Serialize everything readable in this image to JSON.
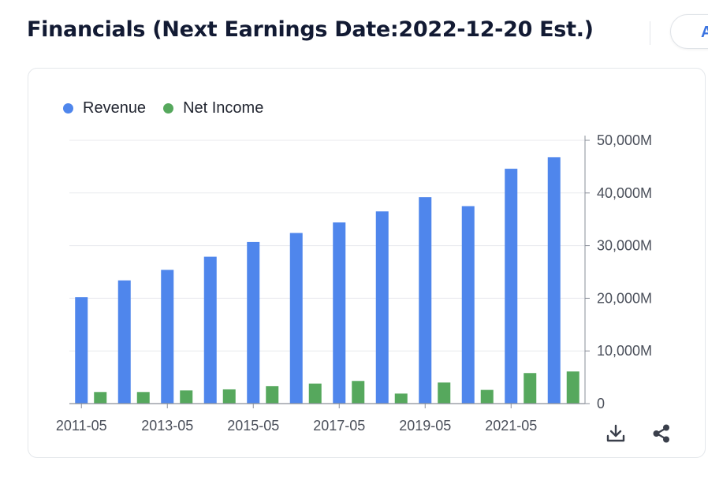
{
  "header": {
    "title": "Financials (Next Earnings Date:2022-12-20 Est.)",
    "right_button_label": "A"
  },
  "toolbar": {
    "download_icon": "download-icon",
    "share_icon": "share-icon"
  },
  "colors": {
    "revenue": "#4f86ec",
    "net_income": "#56a85d",
    "grid": "#e8eaee",
    "axis": "#8a8f99"
  },
  "chart_data": {
    "type": "bar",
    "categories": [
      "2011-05",
      "2012-05",
      "2013-05",
      "2014-05",
      "2015-05",
      "2016-05",
      "2017-05",
      "2018-05",
      "2019-05",
      "2020-05",
      "2021-05",
      "2022-05"
    ],
    "x_tick_labels": [
      "2011-05",
      "2013-05",
      "2015-05",
      "2017-05",
      "2019-05",
      "2021-05"
    ],
    "series": [
      {
        "name": "Revenue",
        "values": [
          20200,
          23400,
          25400,
          27900,
          30700,
          32400,
          34400,
          36500,
          39200,
          37500,
          44600,
          46800
        ]
      },
      {
        "name": "Net Income",
        "values": [
          2200,
          2200,
          2500,
          2700,
          3300,
          3800,
          4300,
          1900,
          4000,
          2600,
          5800,
          6100
        ]
      }
    ],
    "ylim": [
      0,
      50000
    ],
    "y_ticks": [
      {
        "value": 0,
        "label": "0"
      },
      {
        "value": 10000,
        "label": "10,000M"
      },
      {
        "value": 20000,
        "label": "20,000M"
      },
      {
        "value": 30000,
        "label": "30,000M"
      },
      {
        "value": 40000,
        "label": "40,000M"
      },
      {
        "value": 50000,
        "label": "50,000M"
      }
    ],
    "y_axis_position": "right",
    "grid": true,
    "legend_position": "top-left",
    "title": "",
    "xlabel": "",
    "ylabel": ""
  }
}
